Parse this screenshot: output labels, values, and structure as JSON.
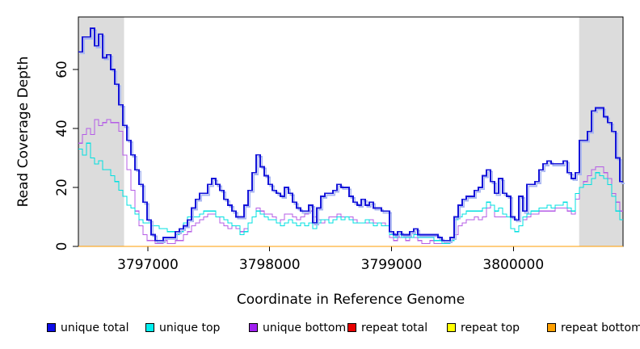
{
  "chart_data": {
    "type": "line",
    "subtype": "step-coverage",
    "title": "",
    "xlabel": "Coordinate in Reference Genome",
    "ylabel": "Read Coverage Depth",
    "xlim": [
      3796430,
      3800900
    ],
    "ylim": [
      0,
      77.8
    ],
    "grid": false,
    "legend_position": "bottom",
    "x_ticks": [
      {
        "value": 3797000,
        "label": "3797000"
      },
      {
        "value": 3798000,
        "label": "3798000"
      },
      {
        "value": 3799000,
        "label": "3799000"
      },
      {
        "value": 3800000,
        "label": "3800000"
      }
    ],
    "y_ticks": [
      {
        "value": 0,
        "label": "0"
      },
      {
        "value": 20,
        "label": "20"
      },
      {
        "value": 40,
        "label": "40"
      },
      {
        "value": 60,
        "label": "60"
      }
    ],
    "highlight_regions": [
      {
        "name": "left-shaded-region",
        "x0": 3796430,
        "x1": 3796805,
        "color": "#dcdcdc"
      },
      {
        "name": "right-shaded-region",
        "x0": 3800540,
        "x1": 3800900,
        "color": "#dcdcdc"
      }
    ],
    "x_start": 3796430,
    "x_step": 33.16,
    "series": [
      {
        "name": "unique total",
        "color": "#1414d9",
        "legend_color": "#0d0de8",
        "line_width": 1.7,
        "shadow_color": "#a8b6f2",
        "values": [
          66,
          71,
          71,
          74,
          68,
          72,
          64,
          65,
          60,
          55,
          48,
          41,
          36,
          31,
          26,
          21,
          15,
          9,
          4,
          2,
          2,
          3,
          3,
          3,
          5,
          6,
          7,
          9,
          13,
          16,
          18,
          18,
          21,
          23,
          21,
          19,
          16,
          14,
          12,
          10,
          10,
          14,
          19,
          25,
          31,
          27,
          24,
          21,
          19,
          18,
          17,
          20,
          18,
          15,
          13,
          12,
          12,
          14,
          8,
          13,
          17,
          18,
          18,
          19,
          21,
          20,
          20,
          17,
          15,
          14,
          16,
          14,
          15,
          13,
          13,
          12,
          12,
          5,
          4,
          5,
          4,
          4,
          5,
          6,
          4,
          4,
          4,
          4,
          4,
          3,
          2,
          2,
          3,
          10,
          14,
          16,
          17,
          17,
          19,
          20,
          24,
          26,
          22,
          18,
          23,
          18,
          17,
          10,
          9,
          17,
          12,
          21,
          21,
          22,
          26,
          28,
          29,
          28,
          28,
          28,
          29,
          25,
          23,
          25,
          36,
          36,
          39,
          46,
          47,
          47,
          44,
          42,
          39,
          30,
          22
        ]
      },
      {
        "name": "unique top",
        "color": "#00e0e0",
        "legend_color": "#00f0f0",
        "line_width": 1.1,
        "values": [
          33,
          31,
          35,
          30,
          28,
          29,
          26,
          26,
          24,
          22,
          19,
          17,
          14,
          13,
          11,
          9,
          8,
          8,
          7,
          7,
          6,
          6,
          5,
          5,
          4,
          5,
          8,
          10,
          10,
          10,
          11,
          12,
          12,
          12,
          10,
          10,
          9,
          8,
          7,
          7,
          4,
          5,
          8,
          10,
          12,
          11,
          10,
          9,
          9,
          8,
          7,
          8,
          9,
          8,
          7,
          8,
          7,
          8,
          6,
          8,
          9,
          9,
          8,
          9,
          10,
          9,
          10,
          9,
          8,
          8,
          8,
          9,
          8,
          7,
          8,
          7,
          7,
          4,
          3,
          4,
          3,
          3,
          3,
          4,
          3,
          3,
          3,
          3,
          2,
          2,
          1,
          1,
          2,
          9,
          10,
          11,
          12,
          12,
          12,
          12,
          13,
          15,
          14,
          12,
          13,
          11,
          10,
          6,
          5,
          7,
          10,
          11,
          12,
          12,
          13,
          13,
          14,
          13,
          14,
          14,
          15,
          13,
          12,
          18,
          20,
          21,
          21,
          23,
          25,
          24,
          23,
          21,
          17,
          12,
          9
        ]
      },
      {
        "name": "unique bottom",
        "color": "#b55ce6",
        "legend_color": "#a020f0",
        "line_width": 1.1,
        "values": [
          35,
          38,
          40,
          38,
          43,
          41,
          42,
          43,
          42,
          42,
          39,
          31,
          26,
          19,
          12,
          7,
          4,
          2,
          2,
          1,
          1,
          2,
          1,
          1,
          2,
          2,
          4,
          5,
          7,
          8,
          9,
          10,
          11,
          11,
          10,
          8,
          7,
          6,
          7,
          6,
          5,
          6,
          8,
          10,
          13,
          12,
          11,
          11,
          10,
          8,
          9,
          11,
          11,
          10,
          9,
          10,
          11,
          12,
          10,
          9,
          8,
          9,
          10,
          10,
          11,
          10,
          10,
          10,
          9,
          8,
          8,
          8,
          9,
          8,
          8,
          8,
          7,
          3,
          2,
          3,
          3,
          2,
          3,
          3,
          2,
          1,
          1,
          2,
          1,
          1,
          1,
          1,
          2,
          4,
          7,
          8,
          9,
          9,
          10,
          9,
          10,
          13,
          14,
          10,
          10,
          10,
          10,
          6,
          5,
          7,
          9,
          10,
          11,
          11,
          12,
          12,
          12,
          12,
          13,
          13,
          13,
          12,
          11,
          16,
          20,
          22,
          24,
          26,
          27,
          27,
          25,
          23,
          18,
          15,
          12
        ]
      },
      {
        "name": "repeat total",
        "color": "#e80000",
        "legend_color": "#e80000",
        "line_width": 1.1,
        "constant": 0
      },
      {
        "name": "repeat top",
        "color": "#ffff00",
        "legend_color": "#ffff00",
        "line_width": 1.1,
        "constant": 0
      },
      {
        "name": "repeat bottom",
        "color": "#ff9d00",
        "legend_color": "#ffa000",
        "line_width": 1.4,
        "constant": 0
      }
    ]
  }
}
